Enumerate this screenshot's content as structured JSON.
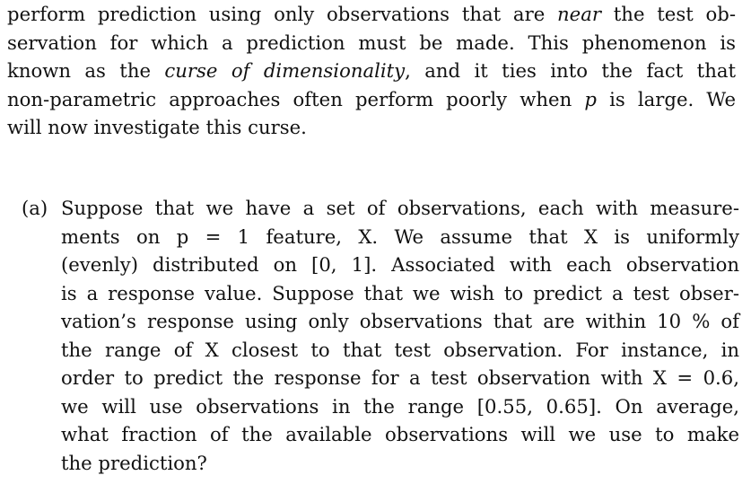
{
  "intro_paragraph": {
    "lines": [
      [
        "perform prediction using only observations that are ",
        "near",
        " the test ob-"
      ],
      [
        "servation for which a prediction must be made. This phenomenon is"
      ],
      [
        "known as the ",
        "curse of dimensionality",
        ", and it ties into the fact that"
      ],
      [
        "non-parametric approaches often perform poorly when ",
        "p",
        " is large. We"
      ],
      [
        "will now investigate this curse."
      ]
    ]
  },
  "question_a": {
    "marker": "(a)",
    "lines": [
      "Suppose that we have a set of observations, each with measure-",
      "ments on p = 1 feature, X. We assume that X is uniformly",
      "(evenly) distributed on [0, 1]. Associated with each observation",
      "is a response value. Suppose that we wish to predict a test obser-",
      "vation’s response using only observations that are within 10 % of",
      "the range of X closest to that test observation. For instance, in",
      "order to predict the response for a test observation with X = 0.6,",
      "we will use observations in the range [0.55, 0.65]. On average,",
      "what fraction of the available observations will we use to make",
      "the prediction?"
    ]
  }
}
